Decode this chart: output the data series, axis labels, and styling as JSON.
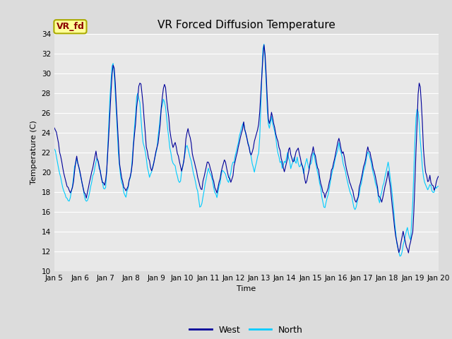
{
  "title": "VR Forced Diffusion Temperature",
  "xlabel": "Time",
  "ylabel": "Temperature (C)",
  "ylim": [
    10,
    34
  ],
  "yticks": [
    10,
    12,
    14,
    16,
    18,
    20,
    22,
    24,
    26,
    28,
    30,
    32,
    34
  ],
  "xtick_labels": [
    "Jan 5",
    "Jan 6",
    "Jan 7",
    "Jan 8",
    "Jan 9",
    "Jan 10",
    "Jan 11",
    "Jan 12",
    "Jan 13",
    "Jan 14",
    "Jan 15",
    "Jan 16",
    "Jan 17",
    "Jan 18",
    "Jan 19",
    "Jan 20"
  ],
  "west_color": "#000099",
  "north_color": "#00CCFF",
  "background_color": "#DCDCDC",
  "axes_bg_color": "#E8E8E8",
  "annotation_text": "VR_fd",
  "annotation_color": "#8B0000",
  "annotation_bg": "#FFFF99",
  "annotation_border": "#AAAA00",
  "legend_west": "West",
  "legend_north": "North",
  "title_fontsize": 11,
  "label_fontsize": 8,
  "tick_fontsize": 7.5
}
